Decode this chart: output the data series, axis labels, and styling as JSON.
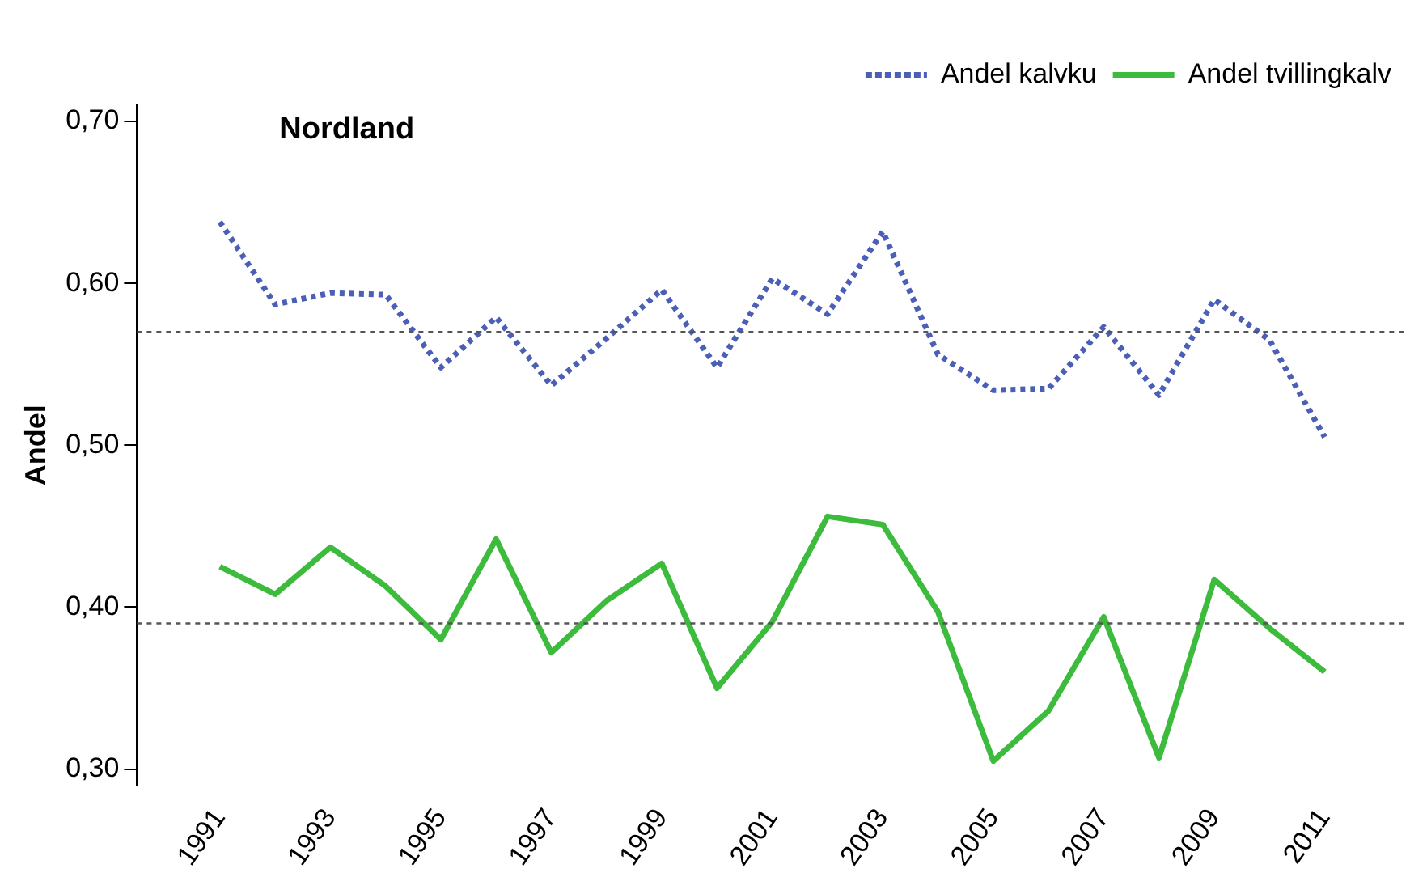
{
  "chart_data": {
    "type": "line",
    "title": "Nordland",
    "ylabel": "Andel",
    "x": [
      1991,
      1992,
      1993,
      1994,
      1995,
      1996,
      1997,
      1998,
      1999,
      2000,
      2001,
      2002,
      2003,
      2004,
      2005,
      2006,
      2007,
      2008,
      2009,
      2010,
      2011
    ],
    "series": [
      {
        "name": "Andel kalvku",
        "color": "#4a5fb5",
        "line_style": "dotted",
        "values": [
          0.638,
          0.587,
          0.594,
          0.593,
          0.548,
          0.579,
          0.537,
          0.566,
          0.596,
          0.548,
          0.603,
          0.581,
          0.632,
          0.556,
          0.534,
          0.535,
          0.573,
          0.531,
          0.59,
          0.565,
          0.505
        ]
      },
      {
        "name": "Andel tvillingkalv",
        "color": "#3dbb3d",
        "line_style": "solid",
        "values": [
          0.425,
          0.408,
          0.437,
          0.413,
          0.38,
          0.442,
          0.372,
          0.404,
          0.427,
          0.35,
          0.391,
          0.456,
          0.451,
          0.397,
          0.305,
          0.336,
          0.394,
          0.307,
          0.417,
          0.387,
          0.36
        ]
      }
    ],
    "xlim": [
      1989.5,
      2012.5
    ],
    "xticks": [
      1991,
      1993,
      1995,
      1997,
      1999,
      2001,
      2003,
      2005,
      2007,
      2009,
      2011
    ],
    "ylim": [
      0.29,
      0.71
    ],
    "yticks": [
      {
        "value": 0.3,
        "label": "0,30"
      },
      {
        "value": 0.4,
        "label": "0,40"
      },
      {
        "value": 0.5,
        "label": "0,50"
      },
      {
        "value": 0.6,
        "label": "0,60"
      },
      {
        "value": 0.7,
        "label": "0,70"
      }
    ],
    "ref_lines": [
      {
        "axis": "y",
        "value": 0.57,
        "color": "#555555",
        "line_style": "dotted"
      },
      {
        "axis": "y",
        "value": 0.39,
        "color": "#555555",
        "line_style": "dotted"
      }
    ],
    "grid": false,
    "legend": "top right",
    "marker": "none"
  }
}
